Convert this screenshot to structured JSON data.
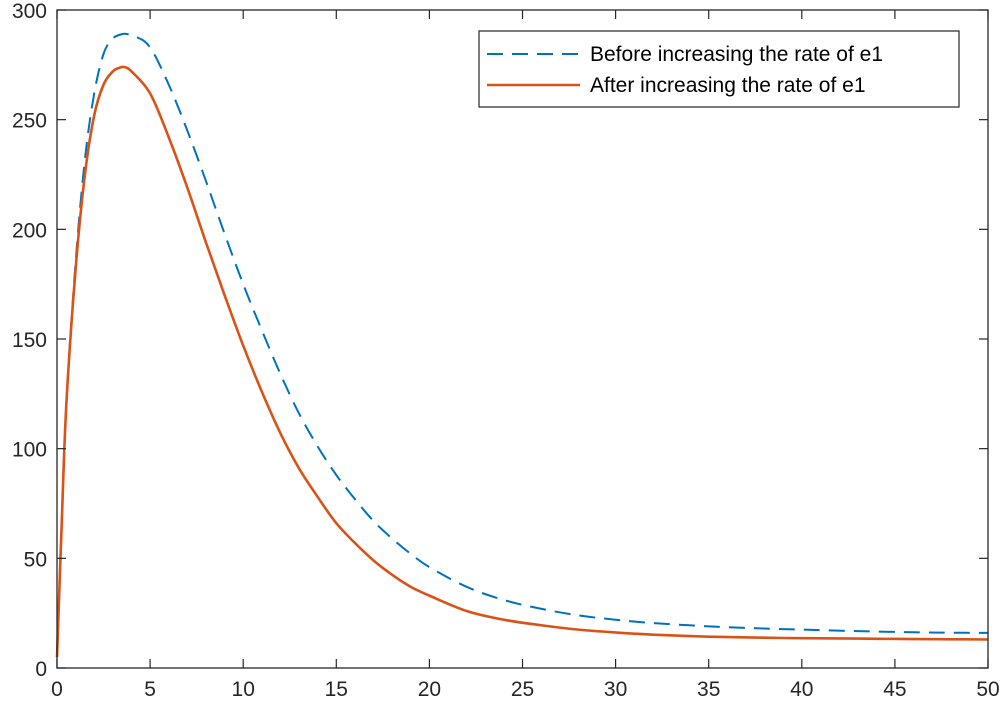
{
  "chart_data": {
    "type": "line",
    "title": "",
    "xlabel": "",
    "ylabel": "",
    "xlim": [
      0,
      50
    ],
    "ylim": [
      0,
      300
    ],
    "xticks": [
      "0",
      "5",
      "10",
      "15",
      "20",
      "25",
      "30",
      "35",
      "40",
      "45",
      "50"
    ],
    "yticks": [
      "0",
      "50",
      "100",
      "150",
      "200",
      "250",
      "300"
    ],
    "grid": false,
    "legend_position": "top-right",
    "series": [
      {
        "name": "Before increasing the rate of e1",
        "style": "dashed",
        "color": "#0072BD",
        "x": [
          0,
          0.25,
          0.5,
          1,
          1.5,
          2,
          2.5,
          3,
          3.5,
          3.8,
          4.2,
          5,
          6,
          7,
          8,
          9,
          10,
          11,
          12,
          13,
          14,
          15,
          16,
          17,
          18,
          19,
          20,
          22,
          24,
          26,
          28,
          30,
          32,
          35,
          38,
          40,
          43,
          46,
          48,
          50
        ],
        "y": [
          5,
          65,
          120,
          185,
          232,
          262,
          280,
          287,
          289,
          289,
          288,
          283,
          266,
          245,
          222,
          198,
          175,
          154,
          134,
          116,
          101,
          88,
          77,
          67,
          59,
          52,
          46,
          37,
          31,
          27,
          24,
          22,
          20.5,
          19,
          18,
          17.5,
          16.8,
          16.3,
          16.1,
          16
        ]
      },
      {
        "name": "After increasing the rate of e1",
        "style": "solid",
        "color": "#D95319",
        "x": [
          0,
          0.25,
          0.5,
          1,
          1.5,
          2,
          2.5,
          3,
          3.3,
          3.6,
          4,
          5,
          6,
          7,
          8,
          9,
          10,
          11,
          12,
          13,
          14,
          15,
          16,
          17,
          18,
          19,
          20,
          22,
          24,
          26,
          28,
          30,
          32,
          35,
          38,
          40,
          43,
          46,
          48,
          50
        ],
        "y": [
          5,
          65,
          120,
          182,
          225,
          252,
          266,
          272,
          273.5,
          274,
          272,
          262,
          242,
          219,
          194,
          170,
          147,
          126,
          107,
          91,
          78,
          66,
          57,
          49,
          42.5,
          37,
          33,
          26,
          22,
          19.5,
          17.5,
          16.2,
          15.2,
          14.3,
          13.8,
          13.6,
          13.4,
          13.2,
          13.1,
          13
        ]
      }
    ]
  }
}
